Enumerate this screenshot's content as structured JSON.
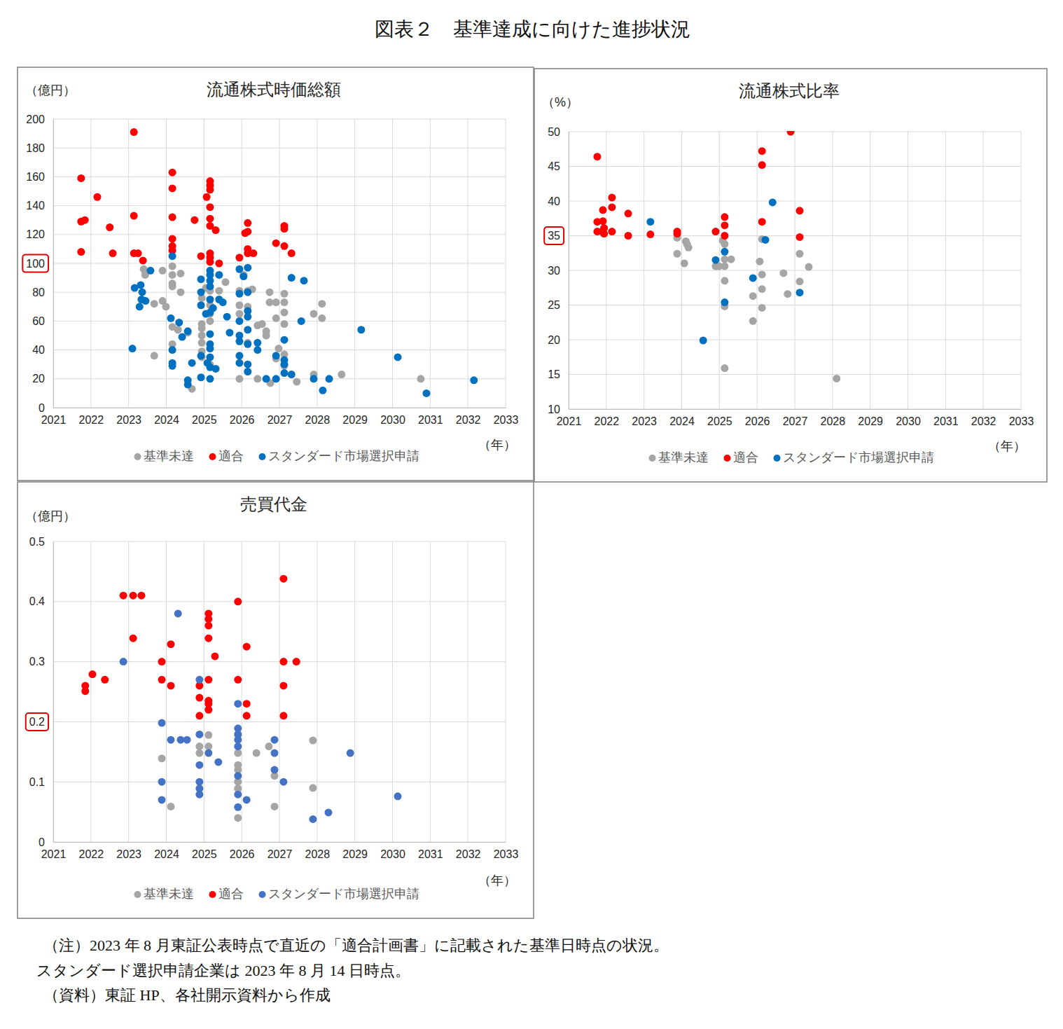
{
  "figure_title": "図表２　基準達成に向けた進捗状況",
  "notes": [
    "（注）2023 年 8 月東証公表時点で直近の「適合計画書」に記載された基準日時点の状況。",
    "スタンダード選択申請企業は 2023 年 8 月 14 日時点。",
    "（資料）東証 HP、各社開示資料から作成"
  ],
  "chart_data": [
    {
      "type": "scatter",
      "title": "流通株式時価総額",
      "y_label": "（億円）",
      "x_label": "（年）",
      "xlim": [
        2021,
        2033
      ],
      "xticks": [
        2021,
        2022,
        2023,
        2024,
        2025,
        2026,
        2027,
        2028,
        2029,
        2030,
        2031,
        2032,
        2033
      ],
      "ylim": [
        0,
        200
      ],
      "yticks": [
        0,
        20,
        40,
        60,
        80,
        100,
        120,
        140,
        160,
        180,
        200
      ],
      "threshold": 100,
      "grid": true,
      "legend": "bottom",
      "series": [
        {
          "name": "基準未達",
          "color": "#a5a5a5",
          "marker": "circle",
          "x": [
            2023.4,
            2023.44,
            2023.68,
            2023.68,
            2023.9,
            2023.9,
            2023.99,
            2024.16,
            2024.16,
            2024.16,
            2024.16,
            2024.16,
            2024.16,
            2024.38,
            2024.38,
            2024.31,
            2024.57,
            2024.68,
            2024.94,
            2024.94,
            2024.94,
            2024.94,
            2024.94,
            2024.94,
            2024.94,
            2025.05,
            2025.16,
            2025.16,
            2025.16,
            2025.16,
            2025.16,
            2025.4,
            2025.57,
            2025.94,
            2025.94,
            2025.94,
            2025.94,
            2026.05,
            2026.16,
            2026.16,
            2026.16,
            2026.28,
            2026.42,
            2026.42,
            2026.54,
            2026.65,
            2026.65,
            2026.74,
            2026.74,
            2026.91,
            2026.91,
            2026.91,
            2026.98,
            2027.13,
            2027.13,
            2027.13,
            2027.13,
            2027.13,
            2027.13,
            2026.76,
            2027.46,
            2027.91,
            2028.13,
            2028.13,
            2027.91,
            2028.65,
            2030.75
          ],
          "values": [
            96,
            92,
            72,
            36,
            95,
            74,
            70,
            98,
            92,
            86,
            84,
            56,
            44,
            93,
            80,
            54,
            52,
            13,
            76,
            58,
            55,
            50,
            45,
            39,
            35,
            83,
            81,
            71,
            65,
            60,
            30,
            81,
            87,
            81,
            71,
            65,
            20,
            92,
            81,
            70,
            45,
            82,
            20,
            57,
            58,
            50,
            53,
            80,
            73,
            73,
            62,
            34,
            41,
            79,
            73,
            66,
            58,
            37,
            29,
            17,
            18,
            65,
            72,
            62,
            23,
            23,
            20
          ]
        },
        {
          "name": "適合",
          "color": "#ff0000",
          "marker": "circle",
          "x": [
            2021.74,
            2021.74,
            2021.84,
            2021.74,
            2022.17,
            2022.5,
            2022.58,
            2023.14,
            2023.14,
            2023.14,
            2023.25,
            2023.38,
            2024.16,
            2024.16,
            2024.16,
            2024.16,
            2024.16,
            2024.16,
            2024.75,
            2024.92,
            2025.07,
            2025.16,
            2025.16,
            2025.16,
            2025.16,
            2025.16,
            2025.16,
            2025.31,
            2025.16,
            2025.16,
            2025.16,
            2025.4,
            2026.16,
            2026.09,
            2026.16,
            2026.16,
            2026.16,
            2025.94,
            2026.31,
            2026.91,
            2027.13,
            2027.13,
            2027.13,
            2027.32
          ],
          "values": [
            159,
            129,
            130,
            108,
            146,
            125,
            107,
            191,
            133,
            107,
            107,
            102,
            163,
            152,
            132,
            117,
            112,
            109,
            130,
            105,
            146,
            157,
            154,
            151,
            139,
            131,
            126,
            123,
            107,
            104,
            101,
            100,
            128,
            121,
            122,
            110,
            107,
            104,
            107,
            114,
            126,
            124,
            112,
            107
          ]
        },
        {
          "name": "スタンダード市場選択申請",
          "color": "#0070c0",
          "marker": "circle",
          "x": [
            2023.1,
            2023.16,
            2023.29,
            2023.32,
            2023.36,
            2023.34,
            2023.45,
            2023.58,
            2024.16,
            2024.12,
            2024.16,
            2024.16,
            2024.16,
            2024.34,
            2024.42,
            2024.57,
            2024.57,
            2024.57,
            2024.68,
            2024.92,
            2024.92,
            2024.92,
            2024.92,
            2024.92,
            2025.05,
            2025.09,
            2025.16,
            2025.16,
            2025.16,
            2025.16,
            2025.16,
            2025.16,
            2025.16,
            2025.16,
            2025.16,
            2025.16,
            2025.16,
            2025.16,
            2025.31,
            2025.24,
            2025.4,
            2025.4,
            2025.5,
            2025.61,
            2025.68,
            2025.94,
            2025.94,
            2025.94,
            2025.94,
            2025.94,
            2025.94,
            2025.94,
            2026.05,
            2026.16,
            2026.16,
            2026.16,
            2026.16,
            2026.16,
            2026.16,
            2026.16,
            2026.16,
            2026.42,
            2026.42,
            2026.65,
            2026.91,
            2026.91,
            2027.13,
            2027.13,
            2027.13,
            2027.13,
            2027.32,
            2027.32,
            2027.58,
            2027.65,
            2027.91,
            2028.15,
            2028.32,
            2029.17,
            2030.14,
            2030.9,
            2032.16
          ],
          "values": [
            41,
            83,
            70,
            85,
            80,
            75,
            74,
            95,
            105,
            62,
            40,
            31,
            29,
            59,
            49,
            53,
            19,
            16,
            31,
            89,
            80,
            71,
            36,
            21,
            65,
            31,
            95,
            92,
            88,
            84,
            75,
            66,
            51,
            44,
            41,
            35,
            28,
            20,
            27,
            69,
            92,
            75,
            73,
            63,
            52,
            96,
            79,
            60,
            50,
            46,
            36,
            31,
            91,
            97,
            80,
            67,
            63,
            54,
            44,
            30,
            25,
            40,
            45,
            20,
            36,
            20,
            47,
            33,
            30,
            24,
            23,
            90,
            60,
            88,
            20,
            12,
            20,
            54,
            35,
            10,
            19
          ]
        }
      ]
    },
    {
      "type": "scatter",
      "title": "流通株式比率",
      "y_label": "（%）",
      "x_label": "（年）",
      "xlim": [
        2021,
        2033
      ],
      "xticks": [
        2021,
        2022,
        2023,
        2024,
        2025,
        2026,
        2027,
        2028,
        2029,
        2030,
        2031,
        2032,
        2033
      ],
      "ylim": [
        10,
        50
      ],
      "yticks": [
        10,
        15,
        20,
        25,
        30,
        35,
        40,
        45,
        50
      ],
      "threshold": 35,
      "grid": true,
      "legend": "bottom",
      "series": [
        {
          "name": "基準未達",
          "color": "#a5a5a5",
          "marker": "circle",
          "x": [
            2023.88,
            2023.88,
            2024.07,
            2024.11,
            2024.14,
            2024.18,
            2024.9,
            2024.99,
            2025.09,
            2025.14,
            2025.14,
            2025.14,
            2025.14,
            2025.14,
            2025.14,
            2025.31,
            2025.89,
            2025.89,
            2026.07,
            2026.13,
            2026.13,
            2026.13,
            2026.13,
            2026.7,
            2026.81,
            2027.13,
            2027.13,
            2027.37,
            2028.11
          ],
          "values": [
            34.7,
            32.4,
            31.0,
            34.2,
            33.8,
            33.3,
            30.6,
            30.6,
            34.3,
            33.8,
            31.6,
            30.6,
            28.5,
            24.8,
            15.9,
            31.6,
            22.7,
            26.3,
            31.3,
            34.5,
            29.4,
            27.3,
            24.6,
            29.6,
            26.6,
            32.4,
            28.4,
            30.5,
            14.4
          ]
        },
        {
          "name": "適合",
          "color": "#ff0000",
          "marker": "circle",
          "x": [
            2021.76,
            2021.76,
            2021.76,
            2021.89,
            2021.91,
            2021.91,
            2021.94,
            2021.94,
            2022.15,
            2022.15,
            2022.15,
            2022.58,
            2022.58,
            2023.17,
            2023.88,
            2023.88,
            2024.9,
            2025.14,
            2025.14,
            2025.14,
            2026.13,
            2026.13,
            2026.13,
            2026.89,
            2027.13,
            2027.13
          ],
          "values": [
            46.4,
            37.0,
            35.6,
            35.6,
            37.1,
            38.7,
            36.1,
            35.3,
            40.5,
            39.1,
            35.6,
            38.2,
            35.0,
            35.2,
            35.6,
            35.3,
            35.6,
            37.7,
            36.5,
            35.0,
            47.2,
            45.2,
            37.0,
            50.0,
            38.6,
            34.8
          ]
        },
        {
          "name": "スタンダード市場選択申請",
          "color": "#0070c0",
          "marker": "circle",
          "x": [
            2023.17,
            2024.57,
            2024.9,
            2025.14,
            2025.14,
            2025.89,
            2026.22,
            2026.41,
            2027.13
          ],
          "values": [
            37.0,
            19.9,
            31.5,
            32.7,
            25.4,
            28.9,
            34.4,
            39.8,
            26.8
          ]
        }
      ]
    },
    {
      "type": "scatter",
      "title": "売買代金",
      "y_label": "（億円）",
      "x_label": "（年）",
      "xlim": [
        2021,
        2033
      ],
      "xticks": [
        2021,
        2022,
        2023,
        2024,
        2025,
        2026,
        2027,
        2028,
        2029,
        2030,
        2031,
        2032,
        2033
      ],
      "ylim": [
        0,
        0.5
      ],
      "yticks": [
        0,
        0.1,
        0.2,
        0.3,
        0.4,
        0.5
      ],
      "threshold": 0.2,
      "grid": true,
      "legend": "bottom",
      "series": [
        {
          "name": "基準未達",
          "color": "#a5a5a5",
          "marker": "circle",
          "x": [
            2023.88,
            2024.12,
            2024.88,
            2024.88,
            2025.12,
            2025.12,
            2025.9,
            2025.9,
            2025.9,
            2025.9,
            2025.9,
            2025.9,
            2026.39,
            2026.72,
            2026.87,
            2026.87,
            2027.89,
            2027.89
          ],
          "values": [
            0.139,
            0.059,
            0.159,
            0.148,
            0.178,
            0.159,
            0.148,
            0.128,
            0.1,
            0.089,
            0.04,
            0.12,
            0.148,
            0.159,
            0.11,
            0.059,
            0.169,
            0.09
          ]
        },
        {
          "name": "適合",
          "color": "#ff0000",
          "marker": "circle",
          "x": [
            2021.85,
            2021.85,
            2022.04,
            2022.37,
            2022.86,
            2023.12,
            2023.34,
            2023.12,
            2023.88,
            2023.88,
            2024.12,
            2024.12,
            2024.88,
            2024.88,
            2024.88,
            2025.12,
            2025.12,
            2025.12,
            2025.12,
            2025.12,
            2025.12,
            2025.12,
            2025.12,
            2025.29,
            2025.9,
            2025.9,
            2026.13,
            2026.13,
            2026.13,
            2027.11,
            2027.11,
            2027.11,
            2027.11,
            2027.45
          ],
          "values": [
            0.26,
            0.251,
            0.279,
            0.27,
            0.41,
            0.41,
            0.41,
            0.339,
            0.3,
            0.27,
            0.329,
            0.26,
            0.26,
            0.24,
            0.21,
            0.38,
            0.371,
            0.36,
            0.339,
            0.27,
            0.235,
            0.23,
            0.22,
            0.309,
            0.4,
            0.27,
            0.325,
            0.23,
            0.21,
            0.438,
            0.3,
            0.26,
            0.21,
            0.3
          ]
        },
        {
          "name": "スタンダード市場選択申請",
          "color": "#4472c4",
          "marker": "circle",
          "x": [
            2022.86,
            2023.88,
            2023.88,
            2023.88,
            2024.12,
            2024.31,
            2024.38,
            2024.55,
            2024.88,
            2024.88,
            2024.88,
            2024.88,
            2024.88,
            2024.88,
            2025.12,
            2025.38,
            2025.9,
            2025.9,
            2025.9,
            2025.9,
            2025.9,
            2025.9,
            2025.9,
            2025.9,
            2026.13,
            2026.87,
            2026.87,
            2026.87,
            2027.11,
            2027.89,
            2028.3,
            2028.88,
            2030.14
          ],
          "values": [
            0.3,
            0.198,
            0.1,
            0.07,
            0.17,
            0.38,
            0.17,
            0.17,
            0.27,
            0.179,
            0.128,
            0.1,
            0.089,
            0.079,
            0.148,
            0.133,
            0.189,
            0.179,
            0.17,
            0.159,
            0.11,
            0.079,
            0.058,
            0.23,
            0.07,
            0.17,
            0.148,
            0.12,
            0.1,
            0.038,
            0.049,
            0.148,
            0.076
          ]
        }
      ]
    }
  ]
}
